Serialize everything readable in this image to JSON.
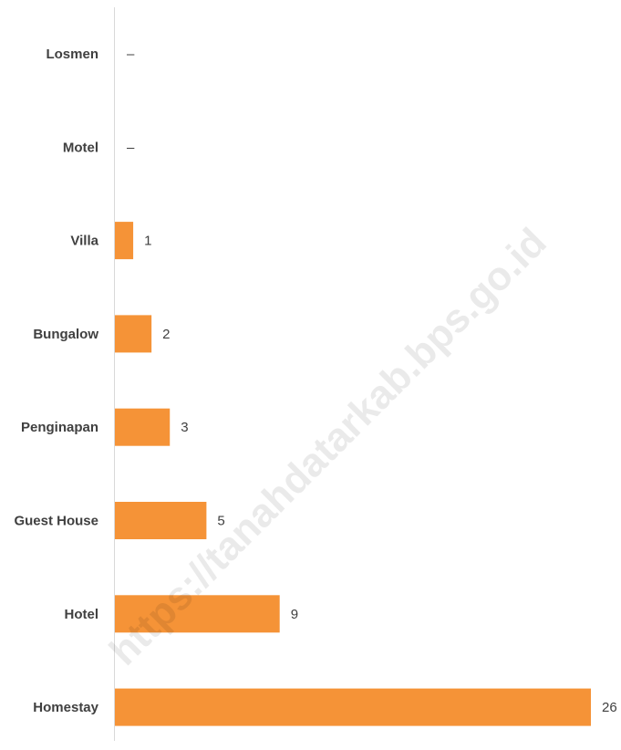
{
  "watermark": "https://tanahdatarkab.bps.go.id",
  "colors": {
    "bar": "#F59337",
    "text": "#404040",
    "axis": "#D9D9D9"
  },
  "chart_data": {
    "type": "bar",
    "orientation": "horizontal",
    "categories": [
      "Losmen",
      "Motel",
      "Villa",
      "Bungalow",
      "Penginapan",
      "Guest House",
      "Hotel",
      "Homestay"
    ],
    "values": [
      0,
      0,
      1,
      2,
      3,
      5,
      9,
      26
    ],
    "value_labels": [
      "–",
      "–",
      "1",
      "2",
      "3",
      "5",
      "9",
      "26"
    ],
    "title": "",
    "xlabel": "",
    "ylabel": "",
    "xlim": [
      0,
      26
    ],
    "grid": false,
    "legend": "none"
  }
}
